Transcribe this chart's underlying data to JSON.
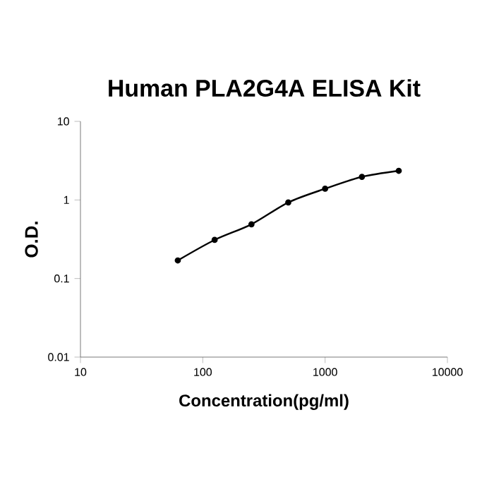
{
  "chart_data": {
    "type": "line",
    "title": "Human PLA2G4A ELISA Kit",
    "xlabel": "Concentration(pg/ml)",
    "ylabel": "O.D.",
    "log": "xy",
    "marker": "circle",
    "grid": false,
    "x": [
      62.5,
      125,
      250,
      500,
      1000,
      2000,
      4000
    ],
    "series": [
      {
        "color": "#000000",
        "values": [
          0.17,
          0.31,
          0.49,
          0.93,
          1.39,
          1.97,
          2.35
        ]
      }
    ],
    "xlim": [
      10,
      10000
    ],
    "xticks": [
      10,
      100,
      1000,
      10000
    ],
    "ylim": [
      0.01,
      10
    ],
    "yticks": [
      0.01,
      0.1,
      1,
      10
    ]
  }
}
